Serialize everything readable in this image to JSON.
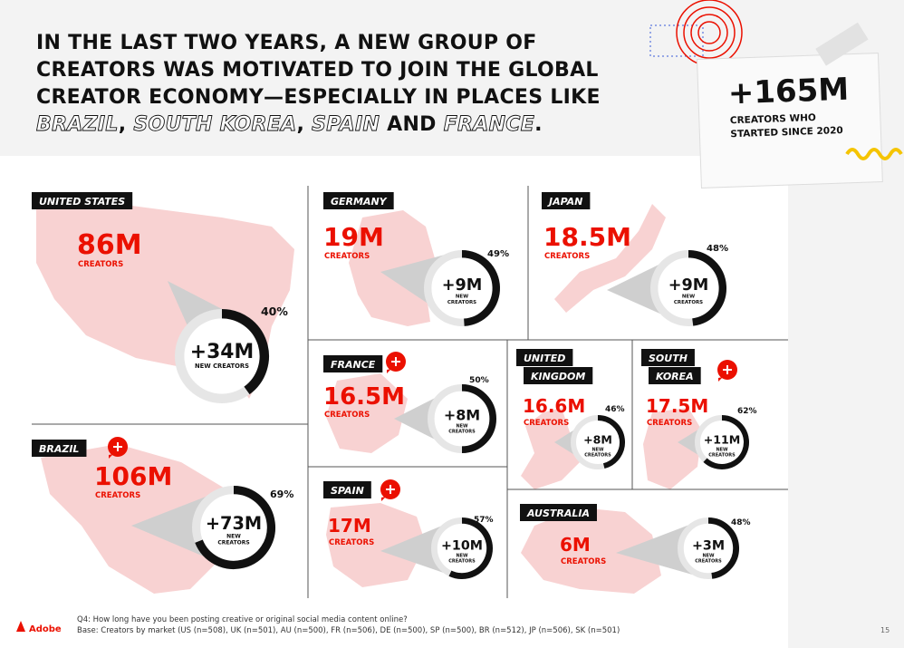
{
  "header": {
    "title_lines": [
      "IN THE LAST TWO YEARS, A NEW GROUP OF",
      "CREATORS WAS MOTIVATED TO JOIN THE GLOBAL",
      "CREATOR ECONOMY—ESPECIALLY IN PLACES LIKE"
    ],
    "title_last_line": [
      "BRAZIL",
      ", ",
      "SOUTH KOREA",
      ", ",
      "SPAIN",
      " AND ",
      "FRANCE",
      "."
    ]
  },
  "note": {
    "value": "+165M",
    "lines": [
      "CREATORS WHO",
      "STARTED SINCE 2020"
    ]
  },
  "markets": [
    {
      "name": [
        "UNITED STATES"
      ],
      "creators": "86M",
      "creators_label": "CREATORS",
      "new": "+34M",
      "new_label": [
        "NEW CREATORS"
      ],
      "share": 40,
      "share_label": "40%"
    },
    {
      "name": [
        "GERMANY"
      ],
      "creators": "19M",
      "creators_label": "CREATORS",
      "new": "+9M",
      "new_label": [
        "NEW",
        "CREATORS"
      ],
      "share": 49,
      "share_label": "49%"
    },
    {
      "name": [
        "JAPAN"
      ],
      "creators": "18.5M",
      "creators_label": "CREATORS",
      "new": "+9M",
      "new_label": [
        "NEW",
        "CREATORS"
      ],
      "share": 48,
      "share_label": "48%"
    },
    {
      "name": [
        "FRANCE"
      ],
      "creators": "16.5M",
      "creators_label": "CREATORS",
      "new": "+8M",
      "new_label": [
        "NEW",
        "CREATORS"
      ],
      "share": 50,
      "share_label": "50%"
    },
    {
      "name": [
        "UNITED",
        "KINGDOM"
      ],
      "creators": "16.6M",
      "creators_label": "CREATORS",
      "new": "+8M",
      "new_label": [
        "NEW",
        "CREATORS"
      ],
      "share": 46,
      "share_label": "46%"
    },
    {
      "name": [
        "SOUTH",
        "KOREA"
      ],
      "creators": "17.5M",
      "creators_label": "CREATORS",
      "new": "+11M",
      "new_label": [
        "NEW",
        "CREATORS"
      ],
      "share": 62,
      "share_label": "62%"
    },
    {
      "name": [
        "BRAZIL"
      ],
      "creators": "106M",
      "creators_label": "CREATORS",
      "new": "+73M",
      "new_label": [
        "NEW",
        "CREATORS"
      ],
      "share": 69,
      "share_label": "69%"
    },
    {
      "name": [
        "SPAIN"
      ],
      "creators": "17M",
      "creators_label": "CREATORS",
      "new": "+10M",
      "new_label": [
        "NEW",
        "CREATORS"
      ],
      "share": 57,
      "share_label": "57%"
    },
    {
      "name": [
        "AUSTRALIA"
      ],
      "creators": "6M",
      "creators_label": "CREATORS",
      "new": "+3M",
      "new_label": [
        "NEW",
        "CREATORS"
      ],
      "share": 48,
      "share_label": "48%"
    }
  ],
  "footer": {
    "brand": "Adobe",
    "question": "Q4: How long have you been posting creative or original social media content online?",
    "base": "Base: Creators by market (US (n=508), UK (n=501), AU (n=500), FR (n=506), DE (n=500), SP (n=500), BR (n=512), JP (n=506), SK (n=501)",
    "page": "15"
  }
}
